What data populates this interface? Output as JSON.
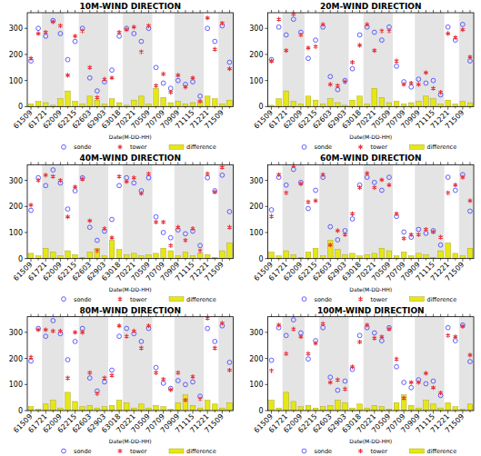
{
  "chart_data": [
    {
      "type": "scatter",
      "title": "10M-WIND DIRECTION",
      "x_label": "Date(M-DD-HH)",
      "categories": [
        "61509",
        null,
        "61721",
        null,
        "62009",
        null,
        "62215",
        null,
        "62603",
        null,
        "62903",
        null,
        "63018",
        null,
        "70221",
        null,
        "70509",
        null,
        "70709",
        null,
        "70909",
        null,
        "71115",
        null,
        "71221",
        null,
        "71509",
        null
      ],
      "ylim": [
        0,
        360
      ],
      "yticks": [
        0,
        100,
        200,
        300
      ],
      "grid": false,
      "bands": [
        [
          2,
          4
        ],
        [
          7,
          10
        ],
        [
          13,
          16
        ],
        [
          20,
          23
        ],
        [
          26,
          27
        ]
      ],
      "series": [
        {
          "name": "sonde",
          "color": "#4d4dff",
          "marker": "circle",
          "values": [
            175,
            300,
            270,
            330,
            280,
            180,
            250,
            300,
            110,
            60,
            95,
            140,
            270,
            300,
            280,
            250,
            300,
            150,
            90,
            70,
            100,
            85,
            95,
            40,
            300,
            250,
            310,
            170
          ]
        },
        {
          "name": "tower",
          "color": "#e8303a",
          "marker": "star",
          "values": [
            185,
            280,
            285,
            325,
            310,
            120,
            270,
            290,
            150,
            35,
            105,
            110,
            285,
            295,
            305,
            210,
            310,
            80,
            125,
            55,
            120,
            75,
            110,
            20,
            340,
            220,
            320,
            145
          ]
        },
        {
          "name": "difference",
          "color": "#e6e619",
          "type": "bar",
          "values": [
            10,
            20,
            15,
            5,
            30,
            60,
            20,
            10,
            40,
            25,
            10,
            30,
            15,
            5,
            25,
            40,
            10,
            70,
            35,
            15,
            20,
            10,
            15,
            20,
            40,
            30,
            10,
            25
          ]
        }
      ]
    },
    {
      "type": "scatter",
      "title": "20M-WIND DIRECTION",
      "x_label": "Date(M-DD-HH)",
      "categories": [
        "61509",
        null,
        "61721",
        null,
        "62009",
        null,
        "62215",
        null,
        "62603",
        null,
        "62903",
        null,
        "63018",
        null,
        "70221",
        null,
        "70509",
        null,
        "70709",
        null,
        "70909",
        null,
        "71115",
        null,
        "71221",
        null,
        "71509",
        null
      ],
      "ylim": [
        0,
        360
      ],
      "yticks": [
        0,
        100,
        200,
        300
      ],
      "grid": false,
      "bands": [
        [
          2,
          4
        ],
        [
          7,
          10
        ],
        [
          13,
          16
        ],
        [
          20,
          23
        ],
        [
          26,
          27
        ]
      ],
      "series": [
        {
          "name": "sonde",
          "color": "#4d4dff",
          "marker": "circle",
          "values": [
            180,
            305,
            275,
            335,
            285,
            185,
            255,
            305,
            115,
            65,
            100,
            145,
            275,
            305,
            285,
            255,
            305,
            155,
            95,
            75,
            105,
            90,
            100,
            45,
            305,
            255,
            315,
            175
          ]
        },
        {
          "name": "tower",
          "color": "#e8303a",
          "marker": "star",
          "values": [
            175,
            335,
            215,
            355,
            275,
            225,
            230,
            315,
            85,
            80,
            95,
            170,
            235,
            315,
            215,
            290,
            290,
            175,
            85,
            90,
            85,
            130,
            70,
            55,
            280,
            265,
            295,
            190
          ]
        },
        {
          "name": "difference",
          "color": "#e6e619",
          "type": "bar",
          "values": [
            5,
            30,
            60,
            20,
            10,
            40,
            25,
            10,
            30,
            15,
            5,
            25,
            40,
            10,
            70,
            35,
            15,
            20,
            10,
            15,
            20,
            40,
            30,
            10,
            25,
            10,
            20,
            15
          ]
        }
      ]
    },
    {
      "type": "scatter",
      "title": "40M-WIND DIRECTION",
      "x_label": "Date(M-DD-HH)",
      "categories": [
        "61509",
        null,
        "61721",
        null,
        "62009",
        null,
        "62215",
        null,
        "62603",
        null,
        "62903",
        null,
        "63018",
        null,
        "70221",
        null,
        "70509",
        null,
        "70709",
        null,
        "70909",
        null,
        "71115",
        null,
        "71221",
        null,
        "71509",
        null
      ],
      "ylim": [
        0,
        360
      ],
      "yticks": [
        0,
        100,
        200,
        300
      ],
      "grid": false,
      "bands": [
        [
          2,
          4
        ],
        [
          7,
          10
        ],
        [
          13,
          16
        ],
        [
          20,
          23
        ],
        [
          26,
          27
        ]
      ],
      "series": [
        {
          "name": "sonde",
          "color": "#4d4dff",
          "marker": "circle",
          "values": [
            185,
            310,
            280,
            340,
            290,
            190,
            260,
            310,
            120,
            70,
            105,
            150,
            280,
            310,
            290,
            260,
            310,
            160,
            100,
            80,
            110,
            95,
            105,
            50,
            310,
            260,
            320,
            180
          ]
        },
        {
          "name": "tower",
          "color": "#e8303a",
          "marker": "star",
          "values": [
            205,
            300,
            320,
            315,
            300,
            160,
            275,
            305,
            145,
            30,
            115,
            80,
            315,
            295,
            310,
            250,
            325,
            140,
            140,
            50,
            120,
            70,
            115,
            30,
            325,
            255,
            350,
            120
          ]
        },
        {
          "name": "difference",
          "color": "#e6e619",
          "type": "bar",
          "values": [
            20,
            10,
            40,
            25,
            10,
            30,
            15,
            5,
            25,
            40,
            10,
            70,
            35,
            15,
            20,
            10,
            15,
            20,
            40,
            30,
            10,
            25,
            10,
            20,
            15,
            5,
            30,
            60
          ]
        }
      ]
    },
    {
      "type": "scatter",
      "title": "60M-WIND DIRECTION",
      "x_label": "Date(M-DD-HH)",
      "categories": [
        "61509",
        null,
        "61721",
        null,
        "62009",
        null,
        "62215",
        null,
        "62603",
        null,
        "62903",
        null,
        "63018",
        null,
        "70221",
        null,
        "70509",
        null,
        "70709",
        null,
        "70909",
        null,
        "71115",
        null,
        "71221",
        null,
        "71509",
        null
      ],
      "ylim": [
        0,
        360
      ],
      "yticks": [
        0,
        100,
        200,
        300
      ],
      "grid": false,
      "bands": [
        [
          2,
          4
        ],
        [
          7,
          10
        ],
        [
          13,
          16
        ],
        [
          20,
          23
        ],
        [
          26,
          27
        ]
      ],
      "series": [
        {
          "name": "sonde",
          "color": "#4d4dff",
          "marker": "circle",
          "values": [
            187,
            312,
            282,
            342,
            292,
            192,
            262,
            312,
            122,
            72,
            107,
            152,
            282,
            312,
            292,
            262,
            312,
            162,
            102,
            82,
            112,
            97,
            107,
            52,
            312,
            262,
            322,
            182
          ]
        },
        {
          "name": "tower",
          "color": "#e8303a",
          "marker": "star",
          "values": [
            162,
            322,
            252,
            357,
            287,
            217,
            222,
            322,
            52,
            107,
            92,
            172,
            272,
            327,
            272,
            302,
            282,
            172,
            77,
            92,
            92,
            112,
            102,
            82,
            252,
            282,
            312,
            222
          ]
        },
        {
          "name": "difference",
          "color": "#e6e619",
          "type": "bar",
          "values": [
            25,
            10,
            30,
            15,
            5,
            25,
            40,
            10,
            70,
            35,
            15,
            20,
            10,
            15,
            20,
            40,
            30,
            10,
            25,
            10,
            20,
            15,
            5,
            30,
            60,
            20,
            10,
            40
          ]
        }
      ]
    },
    {
      "type": "scatter",
      "title": "80M-WIND DIRECTION",
      "x_label": "Date(M-DD-HH)",
      "categories": [
        "61509",
        null,
        "61721",
        null,
        "62009",
        null,
        "62215",
        null,
        "62603",
        null,
        "62903",
        null,
        "63018",
        null,
        "70221",
        null,
        "70509",
        null,
        "70709",
        null,
        "70909",
        null,
        "71115",
        null,
        "71221",
        null,
        "71509",
        null
      ],
      "ylim": [
        0,
        360
      ],
      "yticks": [
        0,
        100,
        200,
        300
      ],
      "grid": false,
      "bands": [
        [
          2,
          4
        ],
        [
          7,
          10
        ],
        [
          13,
          16
        ],
        [
          20,
          23
        ],
        [
          26,
          27
        ]
      ],
      "series": [
        {
          "name": "sonde",
          "color": "#4d4dff",
          "marker": "circle",
          "values": [
            190,
            315,
            285,
            345,
            295,
            195,
            265,
            315,
            125,
            75,
            110,
            155,
            285,
            315,
            295,
            265,
            315,
            165,
            105,
            85,
            115,
            100,
            110,
            55,
            315,
            265,
            325,
            185
          ]
        },
        {
          "name": "tower",
          "color": "#e8303a",
          "marker": "star",
          "values": [
            205,
            310,
            310,
            305,
            305,
            125,
            300,
            300,
            145,
            65,
            125,
            135,
            325,
            285,
            305,
            240,
            325,
            145,
            120,
            80,
            145,
            40,
            130,
            45,
            355,
            240,
            335,
            155
          ]
        },
        {
          "name": "difference",
          "color": "#e6e619",
          "type": "bar",
          "values": [
            15,
            5,
            25,
            40,
            10,
            70,
            35,
            15,
            20,
            10,
            15,
            20,
            40,
            30,
            10,
            25,
            10,
            20,
            15,
            5,
            30,
            60,
            20,
            10,
            40,
            25,
            10,
            30
          ]
        }
      ]
    },
    {
      "type": "scatter",
      "title": "100M-WIND DIRECTION",
      "x_label": "Date(M-DD-HH)",
      "categories": [
        "61509",
        null,
        "61721",
        null,
        "62009",
        null,
        "62215",
        null,
        "62603",
        null,
        "62903",
        null,
        "63018",
        null,
        "70221",
        null,
        "70509",
        null,
        "70709",
        null,
        "70909",
        null,
        "71115",
        null,
        "71221",
        null,
        "71509",
        null
      ],
      "ylim": [
        0,
        360
      ],
      "yticks": [
        0,
        100,
        200,
        300
      ],
      "grid": false,
      "bands": [
        [
          2,
          4
        ],
        [
          7,
          10
        ],
        [
          13,
          16
        ],
        [
          20,
          23
        ],
        [
          26,
          27
        ]
      ],
      "series": [
        {
          "name": "sonde",
          "color": "#4d4dff",
          "marker": "circle",
          "values": [
            193,
            318,
            288,
            348,
            298,
            198,
            268,
            318,
            128,
            78,
            113,
            158,
            288,
            318,
            298,
            268,
            318,
            168,
            108,
            88,
            118,
            103,
            113,
            58,
            318,
            268,
            328,
            188
          ]
        },
        {
          "name": "tower",
          "color": "#e8303a",
          "marker": "star",
          "values": [
            153,
            328,
            218,
            313,
            283,
            218,
            258,
            333,
            108,
            118,
            83,
            168,
            263,
            328,
            278,
            283,
            313,
            198,
            48,
            108,
            108,
            143,
            88,
            68,
            288,
            283,
            323,
            213
          ]
        },
        {
          "name": "difference",
          "color": "#e6e619",
          "type": "bar",
          "values": [
            40,
            10,
            70,
            35,
            15,
            20,
            10,
            15,
            20,
            40,
            30,
            10,
            25,
            10,
            20,
            15,
            5,
            30,
            60,
            20,
            10,
            40,
            25,
            10,
            30,
            15,
            5,
            25
          ]
        }
      ]
    }
  ]
}
